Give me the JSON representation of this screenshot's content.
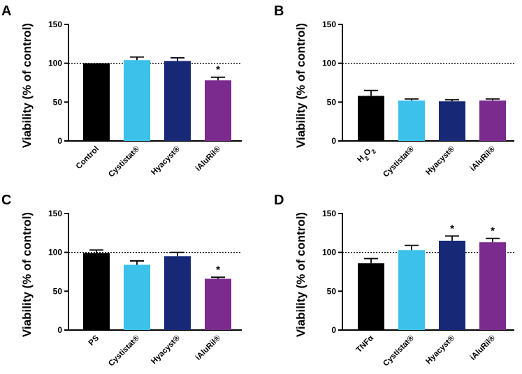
{
  "chart_data": [
    {
      "panel": "A",
      "type": "bar",
      "ylabel": "Viability (% of control)",
      "ylim": [
        0,
        150
      ],
      "yticks": [
        "0",
        "50",
        "100",
        "150"
      ],
      "reference_line": 100,
      "categories": [
        "Control",
        "Cystistat®",
        "Hyacyst®",
        "iAluRil®"
      ],
      "values": [
        100,
        104,
        103,
        78
      ],
      "errors": [
        0,
        4,
        4,
        4
      ],
      "significance": [
        "",
        "",
        "",
        "*"
      ],
      "colors": [
        "#000000",
        "#3bc1ea",
        "#162876",
        "#7b2a8e"
      ]
    },
    {
      "panel": "B",
      "type": "bar",
      "ylabel": "Viability (% of control)",
      "ylim": [
        0,
        150
      ],
      "yticks": [
        "0",
        "50",
        "100",
        "150"
      ],
      "reference_line": 100,
      "categories": [
        "H2O2",
        "Cystistat®",
        "Hyacyst®",
        "iAluRil®"
      ],
      "values": [
        58,
        52,
        51,
        52
      ],
      "errors": [
        7,
        2,
        2,
        2
      ],
      "significance": [
        "",
        "",
        "",
        ""
      ],
      "colors": [
        "#000000",
        "#3bc1ea",
        "#162876",
        "#7b2a8e"
      ]
    },
    {
      "panel": "C",
      "type": "bar",
      "ylabel": "Viability (% of control)",
      "ylim": [
        0,
        150
      ],
      "yticks": [
        "0",
        "50",
        "100",
        "150"
      ],
      "reference_line": 100,
      "categories": [
        "PS",
        "Cystistat®",
        "Hyacyst®",
        "iAluRil®"
      ],
      "values": [
        99,
        84,
        95,
        66
      ],
      "errors": [
        4,
        5,
        5,
        2
      ],
      "significance": [
        "",
        "",
        "",
        "*"
      ],
      "colors": [
        "#000000",
        "#3bc1ea",
        "#162876",
        "#7b2a8e"
      ]
    },
    {
      "panel": "D",
      "type": "bar",
      "ylabel": "Viability (% of control)",
      "ylim": [
        0,
        150
      ],
      "yticks": [
        "0",
        "50",
        "100",
        "150"
      ],
      "reference_line": 100,
      "categories": [
        "TNFα",
        "Cystistat®",
        "Hyacyst®",
        "iAluRil®"
      ],
      "values": [
        86,
        103,
        115,
        113
      ],
      "errors": [
        6,
        6,
        6,
        5
      ],
      "significance": [
        "",
        "",
        "*",
        "*"
      ],
      "colors": [
        "#000000",
        "#3bc1ea",
        "#162876",
        "#7b2a8e"
      ]
    }
  ]
}
